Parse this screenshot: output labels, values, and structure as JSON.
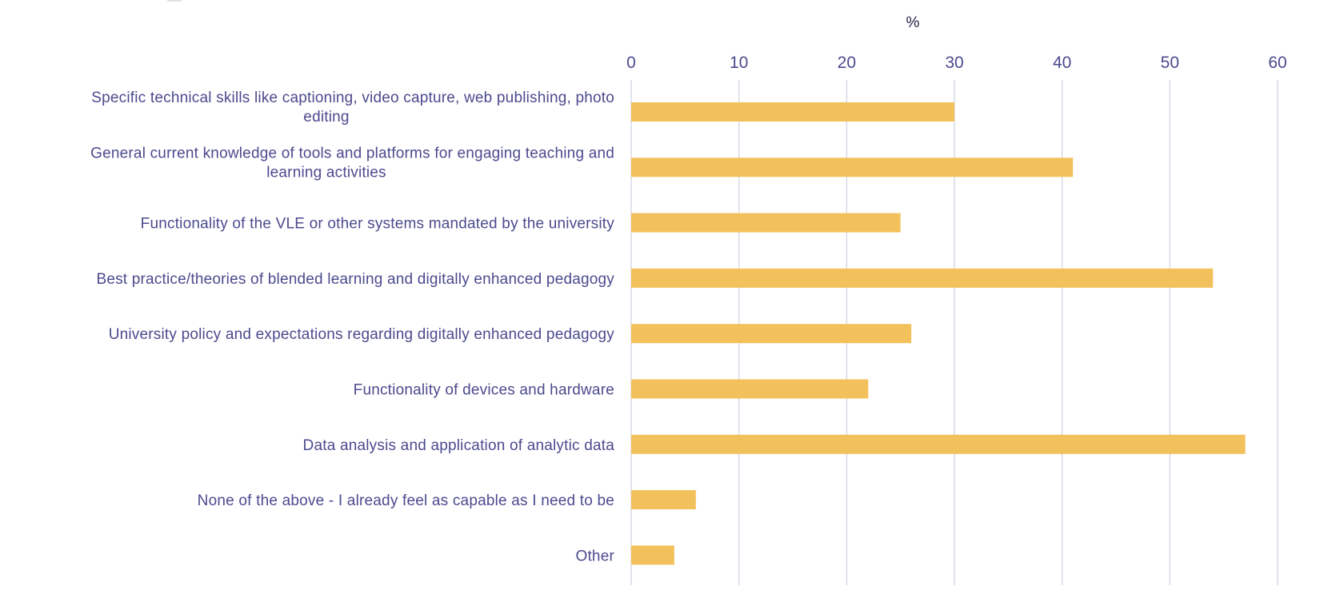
{
  "chart_data": {
    "type": "bar",
    "orientation": "horizontal",
    "title": "",
    "xlabel": "%",
    "ylabel": "",
    "xlim": [
      0,
      60
    ],
    "x_ticks": [
      "0",
      "10",
      "20",
      "30",
      "40",
      "50",
      "60"
    ],
    "grid": true,
    "bar_color": "#f3c15b",
    "categories": [
      [
        "Specific technical skills like captioning, video capture, web publishing, photo",
        "editing"
      ],
      [
        "General current knowledge of tools and platforms for engaging teaching and",
        "learning activities"
      ],
      [
        "Functionality of the VLE or other systems mandated by the university"
      ],
      [
        "Best practice/theories of blended learning and digitally enhanced pedagogy"
      ],
      [
        "University policy and expectations regarding digitally enhanced pedagogy"
      ],
      [
        "Functionality of devices and hardware"
      ],
      [
        "Data analysis and application of analytic data"
      ],
      [
        "None of the above - I already feel as capable as I need to be"
      ],
      [
        "Other"
      ]
    ],
    "values": [
      30,
      41,
      25,
      54,
      26,
      22,
      57,
      6,
      4
    ]
  }
}
